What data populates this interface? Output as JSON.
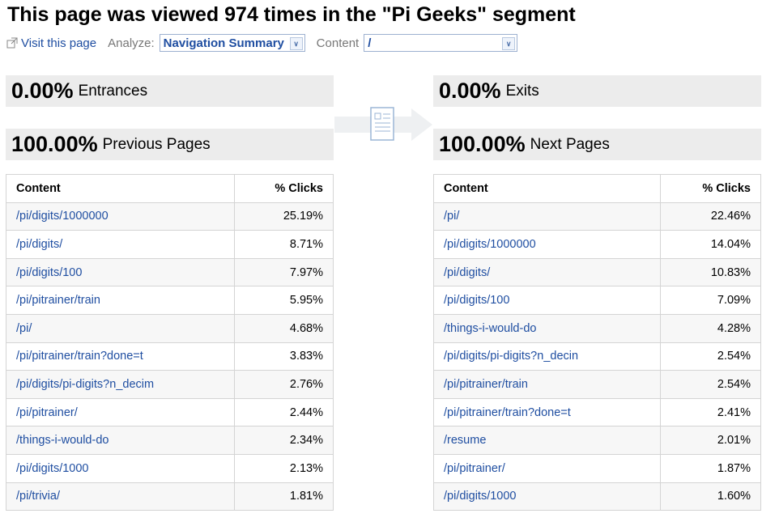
{
  "header": {
    "title": "This page was viewed 974 times in the \"Pi Geeks\" segment",
    "visit_link": "Visit this page",
    "analyze_label": "Analyze:",
    "analyze_value": "Navigation Summary",
    "content_label": "Content",
    "content_value": "/"
  },
  "left": {
    "stats": [
      {
        "value": "0.00%",
        "label": "Entrances"
      },
      {
        "value": "100.00%",
        "label": "Previous Pages"
      }
    ],
    "table": {
      "columns": [
        "Content",
        "% Clicks"
      ],
      "rows": [
        [
          "/pi/digits/1000000",
          "25.19%"
        ],
        [
          "/pi/digits/",
          "8.71%"
        ],
        [
          "/pi/digits/100",
          "7.97%"
        ],
        [
          "/pi/pitrainer/train",
          "5.95%"
        ],
        [
          "/pi/",
          "4.68%"
        ],
        [
          "/pi/pitrainer/train?done=t",
          "3.83%"
        ],
        [
          "/pi/digits/pi-digits?n_decim",
          "2.76%"
        ],
        [
          "/pi/pitrainer/",
          "2.44%"
        ],
        [
          "/things-i-would-do",
          "2.34%"
        ],
        [
          "/pi/digits/1000",
          "2.13%"
        ],
        [
          "/pi/trivia/",
          "1.81%"
        ]
      ]
    }
  },
  "right": {
    "stats": [
      {
        "value": "0.00%",
        "label": "Exits"
      },
      {
        "value": "100.00%",
        "label": "Next Pages"
      }
    ],
    "table": {
      "columns": [
        "Content",
        "% Clicks"
      ],
      "rows": [
        [
          "/pi/",
          "22.46%"
        ],
        [
          "/pi/digits/1000000",
          "14.04%"
        ],
        [
          "/pi/digits/",
          "10.83%"
        ],
        [
          "/pi/digits/100",
          "7.09%"
        ],
        [
          "/things-i-would-do",
          "4.28%"
        ],
        [
          "/pi/digits/pi-digits?n_decin",
          "2.54%"
        ],
        [
          "/pi/pitrainer/train",
          "2.54%"
        ],
        [
          "/pi/pitrainer/train?done=t",
          "2.41%"
        ],
        [
          "/resume",
          "2.01%"
        ],
        [
          "/pi/pitrainer/",
          "1.87%"
        ],
        [
          "/pi/digits/1000",
          "1.60%"
        ]
      ]
    }
  }
}
